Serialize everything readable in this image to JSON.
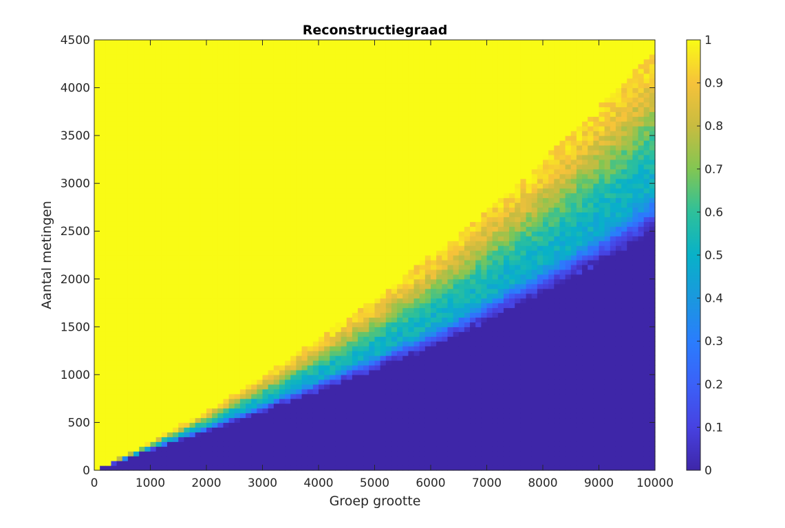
{
  "chart_data": {
    "type": "heatmap",
    "title": "Reconstructiegraad",
    "xlabel": "Groep grootte",
    "ylabel": "Aantal metingen",
    "xlim": [
      0,
      10000
    ],
    "ylim": [
      0,
      4500
    ],
    "x_ticks": [
      "0",
      "1000",
      "2000",
      "3000",
      "4000",
      "5000",
      "6000",
      "7000",
      "8000",
      "9000",
      "10000"
    ],
    "y_ticks": [
      "0",
      "500",
      "1000",
      "1500",
      "2000",
      "2500",
      "3000",
      "3500",
      "4000",
      "4500"
    ],
    "x_tick_values": [
      0,
      1000,
      2000,
      3000,
      4000,
      5000,
      6000,
      7000,
      8000,
      9000,
      10000
    ],
    "y_tick_values": [
      0,
      500,
      1000,
      1500,
      2000,
      2500,
      3000,
      3500,
      4000,
      4500
    ],
    "colorbar": {
      "range": [
        0,
        1
      ],
      "ticks": [
        "0",
        "0.1",
        "0.2",
        "0.3",
        "0.4",
        "0.5",
        "0.6",
        "0.7",
        "0.8",
        "0.9",
        "1"
      ],
      "tick_values": [
        0,
        0.1,
        0.2,
        0.3,
        0.4,
        0.5,
        0.6,
        0.7,
        0.8,
        0.9,
        1.0
      ],
      "colormap": "parula",
      "colormap_stops": [
        "#3e26a8",
        "#4742e1",
        "#3b61f8",
        "#2a7dfd",
        "#1a98de",
        "#08b1c8",
        "#2ec09a",
        "#82c653",
        "#c8bc40",
        "#f6c23a",
        "#f9fb15"
      ]
    },
    "transition_boundary": {
      "description_x": [
        0,
        1000,
        2000,
        3000,
        4000,
        5000,
        6000,
        7000,
        8000,
        9000,
        10000
      ],
      "level_0_05_y": [
        0,
        210,
        400,
        610,
        830,
        1050,
        1280,
        1560,
        1860,
        2170,
        2500
      ],
      "level_0_5_y": [
        0,
        240,
        470,
        720,
        980,
        1240,
        1520,
        1840,
        2180,
        2560,
        3000
      ],
      "level_0_95_y": [
        0,
        300,
        620,
        980,
        1380,
        1800,
        2250,
        2750,
        3250,
        3800,
        4400
      ]
    }
  }
}
